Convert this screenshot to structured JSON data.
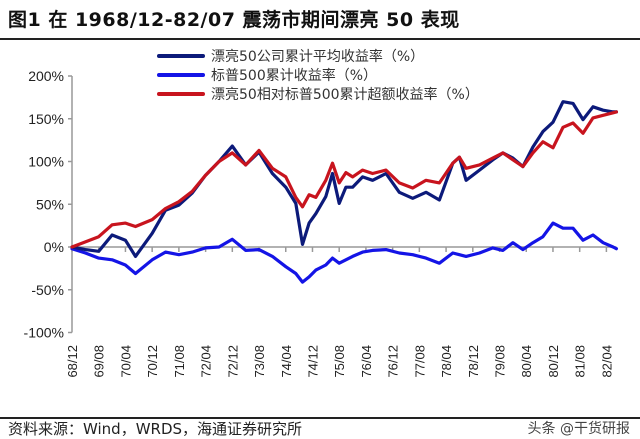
{
  "header": {
    "title": "图1  在 1968/12-82/07 震荡市期间漂亮 50 表现"
  },
  "footer": {
    "source": "资料来源：Wind，WRDS，海通证券研究所",
    "watermark": "头条 @干货研报"
  },
  "chart_data": {
    "type": "line",
    "title": "在 1968/12-82/07 震荡市期间漂亮 50 表现",
    "xlabel": "",
    "ylabel": "",
    "ylim": [
      -100,
      200
    ],
    "yticks": [
      200,
      150,
      100,
      50,
      0,
      -50,
      -100
    ],
    "ytick_labels": [
      "200%",
      "150%",
      "100%",
      "50%",
      "0%",
      "-50%",
      "-100%"
    ],
    "x_unit": "months since 1968/12",
    "xlim": [
      0,
      163
    ],
    "xtick_months": [
      0,
      8,
      16,
      24,
      32,
      40,
      48,
      56,
      64,
      72,
      80,
      88,
      96,
      104,
      112,
      120,
      128,
      136,
      144,
      152,
      160
    ],
    "xtick_labels": [
      "68/12",
      "69/08",
      "70/04",
      "70/12",
      "71/08",
      "72/04",
      "72/12",
      "73/08",
      "74/04",
      "74/12",
      "75/08",
      "76/04",
      "76/12",
      "77/08",
      "78/04",
      "78/12",
      "79/08",
      "80/04",
      "80/12",
      "81/08",
      "82/04"
    ],
    "legend_position": "top-center",
    "x": [
      0,
      4,
      8,
      12,
      16,
      19,
      24,
      28,
      32,
      36,
      40,
      44,
      48,
      52,
      56,
      60,
      64,
      67,
      69,
      71,
      73,
      76,
      78,
      80,
      82,
      84,
      87,
      90,
      94,
      98,
      102,
      106,
      110,
      114,
      116,
      118,
      122,
      126,
      129,
      132,
      135,
      138,
      141,
      144,
      147,
      150,
      153,
      156,
      159,
      162,
      163
    ],
    "series": [
      {
        "name": "漂亮50公司累计平均收益率（%）",
        "color": "#0c1a7a",
        "values": [
          0,
          -3,
          -5,
          14,
          8,
          -11,
          16,
          43,
          49,
          63,
          84,
          100,
          118,
          96,
          111,
          86,
          70,
          51,
          3,
          28,
          39,
          59,
          86,
          51,
          70,
          70,
          82,
          78,
          86,
          64,
          57,
          64,
          55,
          98,
          105,
          78,
          90,
          102,
          110,
          104,
          94,
          117,
          135,
          146,
          170,
          168,
          149,
          164,
          160,
          158,
          158
        ]
      },
      {
        "name": "标普500累计收益率（%）",
        "color": "#1414e6",
        "values": [
          -2,
          -7,
          -13,
          -15,
          -21,
          -31,
          -15,
          -6,
          -9,
          -6,
          -1,
          0,
          9,
          -4,
          -3,
          -11,
          -23,
          -31,
          -41,
          -35,
          -27,
          -21,
          -13,
          -19,
          -15,
          -11,
          -6,
          -4,
          -3,
          -7,
          -9,
          -13,
          -19,
          -7,
          -9,
          -11,
          -7,
          -1,
          -4,
          5,
          -3,
          5,
          12,
          28,
          22,
          22,
          8,
          14,
          5,
          0,
          -2
        ]
      },
      {
        "name": "漂亮50相对标普500累计超额收益率（%）",
        "color": "#c8141e",
        "values": [
          0,
          6,
          12,
          26,
          28,
          24,
          32,
          45,
          53,
          65,
          84,
          100,
          110,
          96,
          113,
          92,
          82,
          58,
          47,
          61,
          58,
          78,
          98,
          75,
          87,
          82,
          90,
          86,
          90,
          75,
          69,
          78,
          75,
          98,
          105,
          92,
          96,
          104,
          110,
          102,
          94,
          110,
          123,
          116,
          140,
          145,
          133,
          151,
          154,
          157,
          158
        ]
      }
    ]
  }
}
